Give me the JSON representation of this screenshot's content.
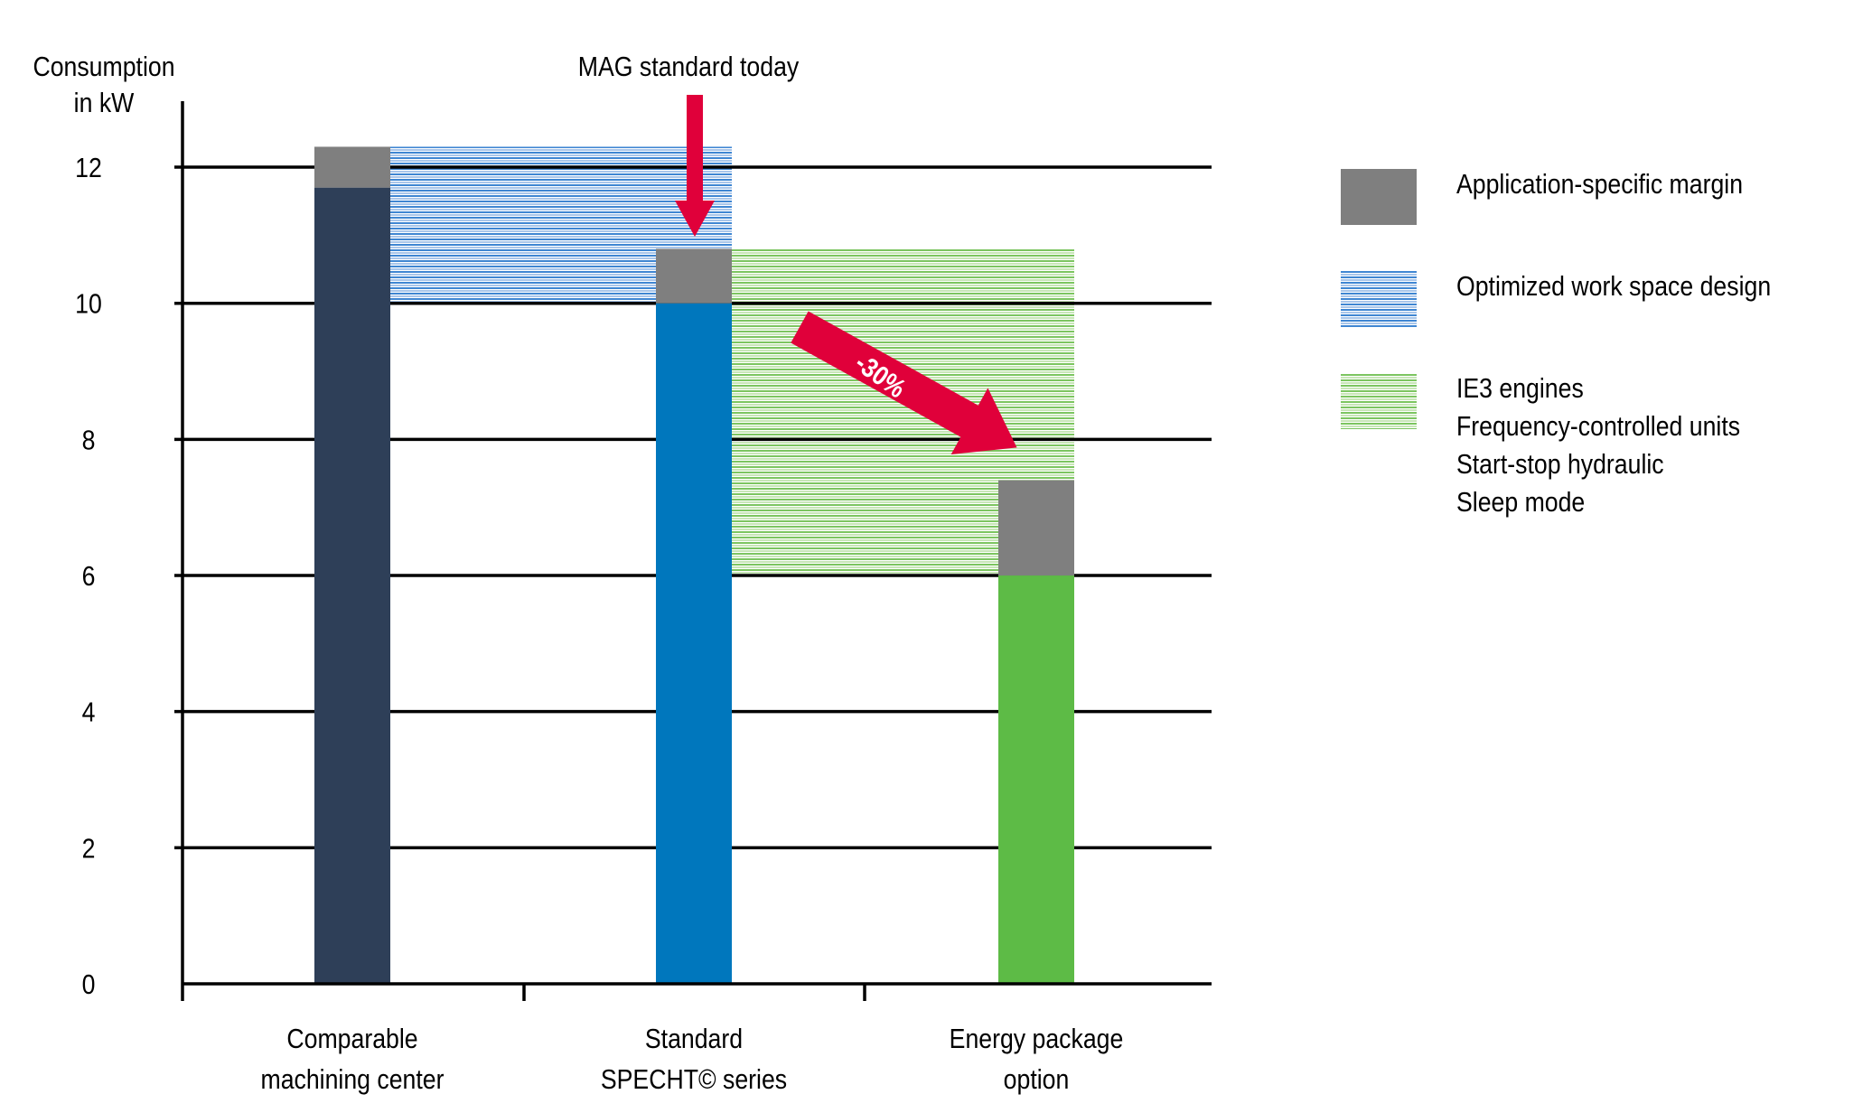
{
  "chart_data": {
    "type": "bar",
    "subtype": "stacked-waterfall",
    "ylabel": [
      "Consumption",
      "in kW"
    ],
    "ylim": [
      0,
      12.9
    ],
    "yticks": [
      0,
      2,
      4,
      6,
      8,
      10,
      12
    ],
    "grid": true,
    "categories": [
      [
        "Comparable",
        "machining center"
      ],
      [
        "Standard",
        "SPECHT© series"
      ],
      [
        "Energy package",
        "option"
      ]
    ],
    "bars": [
      {
        "base_value": 11.7,
        "base_color": "#2e3f58",
        "margin_value": 0.6
      },
      {
        "base_value": 10.0,
        "base_color": "#0077bd",
        "margin_value": 0.8
      },
      {
        "base_value": 6.0,
        "base_color": "#5dbb46",
        "margin_value": 1.4
      }
    ],
    "bands": [
      {
        "legend_index": 1,
        "from_category": 0,
        "to_category": 1,
        "range": [
          10.0,
          12.3
        ]
      },
      {
        "legend_index": 2,
        "from_category": 1,
        "to_category": 2,
        "range": [
          6.0,
          10.8
        ]
      }
    ],
    "legend": {
      "placement": "right",
      "items": [
        {
          "lines": [
            "Application-specific margin"
          ],
          "color": "#7f7f7f",
          "pattern": "solid"
        },
        {
          "lines": [
            "Optimized work space design"
          ],
          "color": "#4a8fd6",
          "pattern": "horizontal-stripes"
        },
        {
          "lines": [
            "IE3 engines",
            "Frequency-controlled units",
            "Start-stop hydraulic",
            "Sleep mode"
          ],
          "color": "#7cc560",
          "pattern": "horizontal-stripes"
        }
      ]
    },
    "annotations": [
      {
        "text": "MAG standard today",
        "arrow": "down",
        "target_category": 1,
        "color": "#e0003a"
      },
      {
        "text": "-30%",
        "arrow": "diagonal-down-right",
        "color": "#e0003a"
      }
    ]
  }
}
